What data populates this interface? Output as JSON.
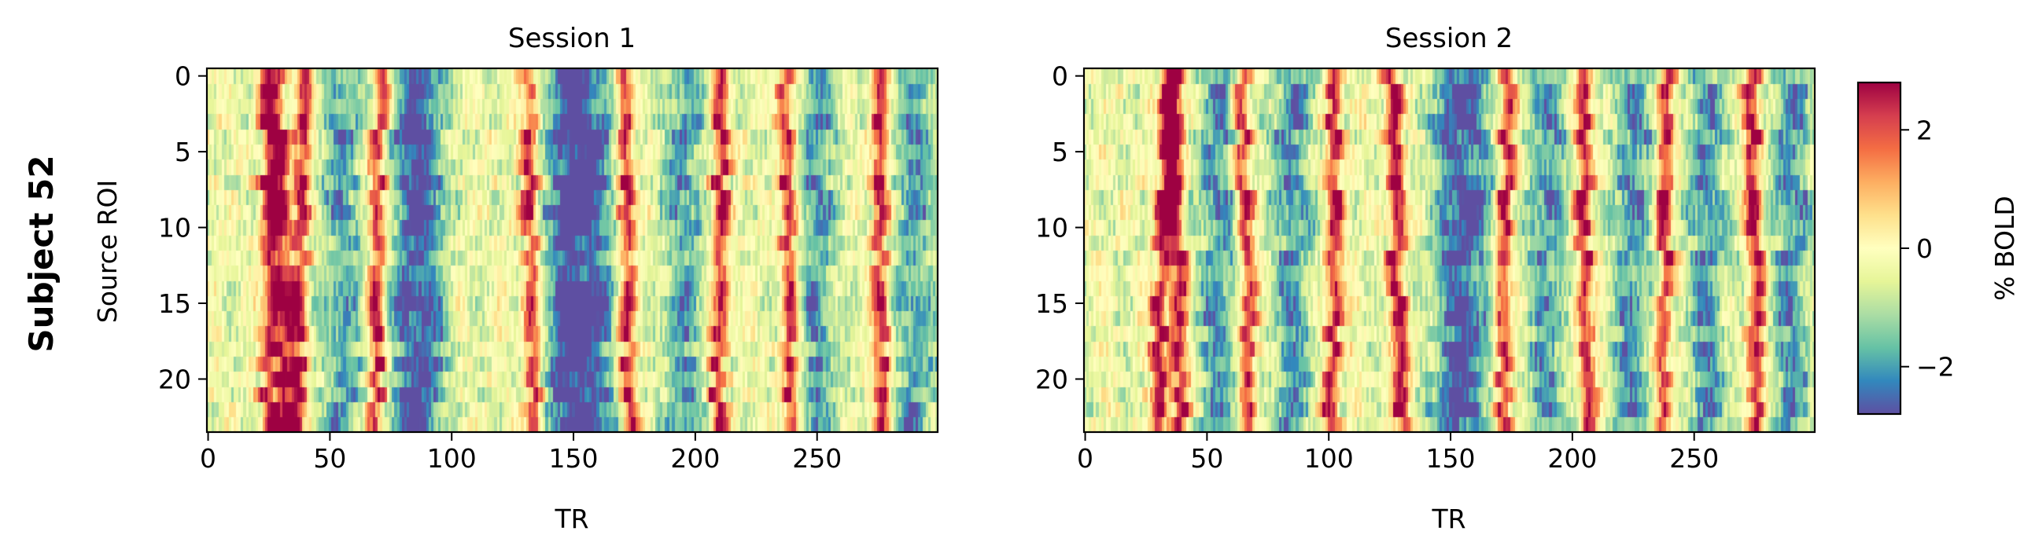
{
  "figure": {
    "row_label": "Subject 52"
  },
  "chart_data": [
    {
      "type": "heatmap",
      "title": "Session 1",
      "xlabel": "TR",
      "ylabel": "Source ROI",
      "n_rows": 24,
      "n_cols": 300,
      "xlim": [
        0,
        299
      ],
      "ylim": [
        23.5,
        -0.5
      ],
      "xticks": [
        0,
        50,
        100,
        150,
        200,
        250
      ],
      "yticks": [
        0,
        5,
        10,
        15,
        20
      ],
      "colormap": "Spectral_r",
      "vmin": -2.8,
      "vmax": 2.8,
      "peaks_TR": [
        25,
        30,
        38,
        70,
        133,
        172,
        210,
        238,
        276
      ],
      "troughs_TR": [
        55,
        82,
        90,
        145,
        152,
        160,
        195,
        250,
        290
      ],
      "peak_drift_TR_per_row": [
        0,
        0.15,
        -0.1,
        -0.05,
        0.12,
        0.05,
        -0.12,
        0.1,
        0.08
      ],
      "pattern_seed": 52
    },
    {
      "type": "heatmap",
      "title": "Session 2",
      "xlabel": "TR",
      "ylabel": "",
      "n_rows": 24,
      "n_cols": 300,
      "xlim": [
        0,
        299
      ],
      "ylim": [
        23.5,
        -0.5
      ],
      "xticks": [
        0,
        50,
        100,
        150,
        200,
        250
      ],
      "yticks": [
        0,
        5,
        10,
        15,
        20
      ],
      "colormap": "Spectral_r",
      "vmin": -2.8,
      "vmax": 2.8,
      "peaks_TR": [
        32,
        38,
        66,
        102,
        128,
        172,
        205,
        238,
        275
      ],
      "troughs_TR": [
        55,
        85,
        150,
        160,
        190,
        225,
        255,
        290
      ],
      "peak_drift_TR_per_row": [
        -0.2,
        0.1,
        0.15,
        -0.05,
        0.2,
        -0.1,
        0.1,
        -0.1,
        0.1
      ],
      "pattern_seed": 152
    }
  ],
  "colorbar": {
    "label": "% BOLD",
    "ticks": [
      -2,
      0,
      2
    ],
    "tick_labels": [
      "−2",
      "0",
      "2"
    ],
    "vmin": -2.8,
    "vmax": 2.8
  }
}
